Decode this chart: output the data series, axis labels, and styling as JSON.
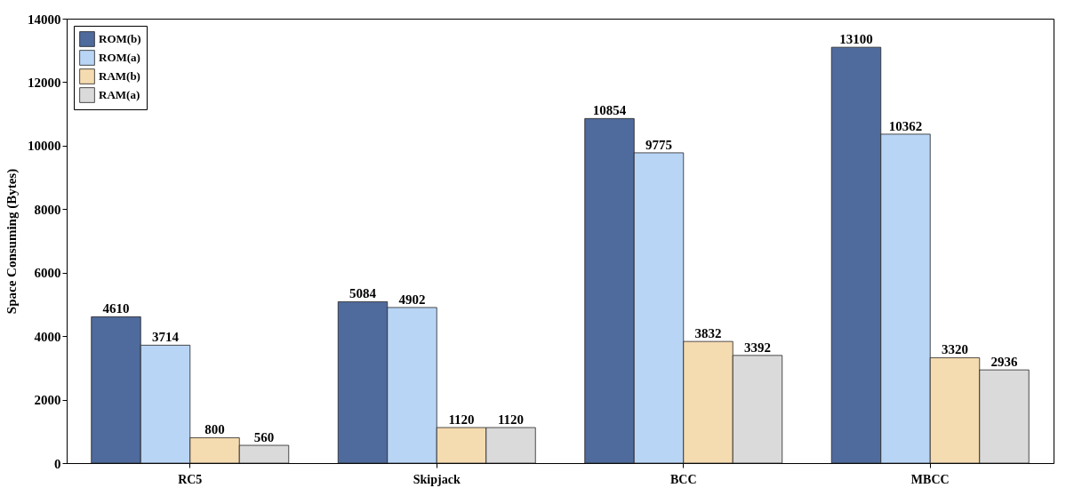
{
  "chart_data": {
    "type": "bar",
    "ylabel": "Space Consuming (Bytes)",
    "categories": [
      "RC5",
      "Skipjack",
      "BCC",
      "MBCC"
    ],
    "series": [
      {
        "name": "ROM(b)",
        "color": "#4f6a9c",
        "values": [
          4610,
          5084,
          10854,
          13100
        ]
      },
      {
        "name": "ROM(a)",
        "color": "#b9d5f5",
        "values": [
          3714,
          4902,
          9775,
          10362
        ]
      },
      {
        "name": "RAM(b)",
        "color": "#f5dbb0",
        "values": [
          800,
          1120,
          3832,
          3320
        ]
      },
      {
        "name": "RAM(a)",
        "color": "#dadada",
        "values": [
          560,
          1120,
          3392,
          2936
        ]
      }
    ],
    "ylim": [
      0,
      14000
    ],
    "yticks": [
      0,
      2000,
      4000,
      6000,
      8000,
      10000,
      12000,
      14000
    ],
    "grid": false,
    "legend": "top left",
    "data_labels": true
  }
}
